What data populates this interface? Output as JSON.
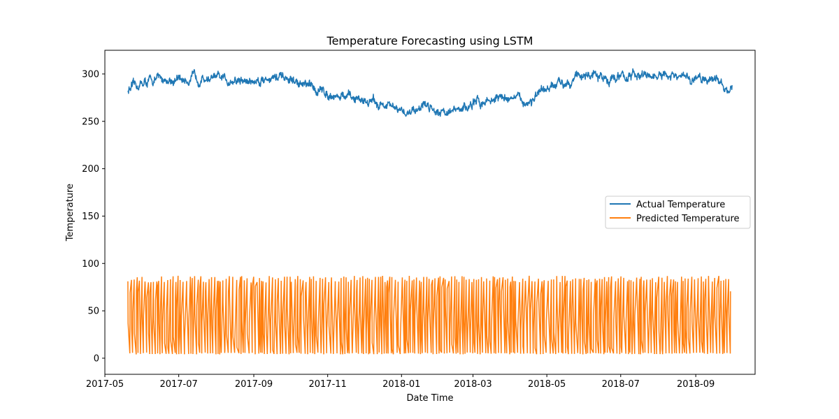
{
  "chart_data": {
    "type": "line",
    "title": "Temperature Forecasting using LSTM",
    "xlabel": "Date Time",
    "ylabel": "Temperature",
    "xlim": [
      "2017-05-01",
      "2018-10-20"
    ],
    "ylim": [
      -17,
      325
    ],
    "x_ticks": [
      "2017-05",
      "2017-07",
      "2017-09",
      "2017-11",
      "2018-01",
      "2018-03",
      "2018-05",
      "2018-07",
      "2018-09"
    ],
    "y_ticks": [
      0,
      50,
      100,
      150,
      200,
      250,
      300
    ],
    "grid": false,
    "legend_position": "center-right",
    "series": [
      {
        "name": "Actual Temperature",
        "color": "#1f77b4",
        "x": [
          "2017-05-20",
          "2017-06-01",
          "2017-06-15",
          "2017-07-01",
          "2017-07-15",
          "2017-08-01",
          "2017-08-15",
          "2017-09-01",
          "2017-09-15",
          "2017-10-01",
          "2017-10-15",
          "2017-11-01",
          "2017-11-15",
          "2017-12-01",
          "2017-12-15",
          "2017-12-25",
          "2018-01-01",
          "2018-01-10",
          "2018-01-20",
          "2018-02-01",
          "2018-02-15",
          "2018-03-01",
          "2018-03-15",
          "2018-04-01",
          "2018-04-15",
          "2018-05-01",
          "2018-05-15",
          "2018-06-01",
          "2018-06-15",
          "2018-07-01",
          "2018-07-15",
          "2018-08-01",
          "2018-08-15",
          "2018-09-01",
          "2018-09-15",
          "2018-10-01"
        ],
        "y": [
          283,
          290,
          295,
          293,
          296,
          295,
          293,
          292,
          297,
          293,
          287,
          280,
          275,
          273,
          268,
          264,
          258,
          262,
          268,
          262,
          260,
          268,
          273,
          276,
          270,
          282,
          292,
          300,
          295,
          297,
          298,
          297,
          296,
          294,
          296,
          283
        ]
      },
      {
        "name": "Predicted Temperature",
        "color": "#ff7f0e",
        "x_start": "2017-05-20",
        "x_end": "2018-10-01",
        "band_low": [
          4,
          6
        ],
        "band_high": [
          80,
          87
        ],
        "pattern": "rapid oscillation between roughly 2 and 87"
      }
    ]
  }
}
